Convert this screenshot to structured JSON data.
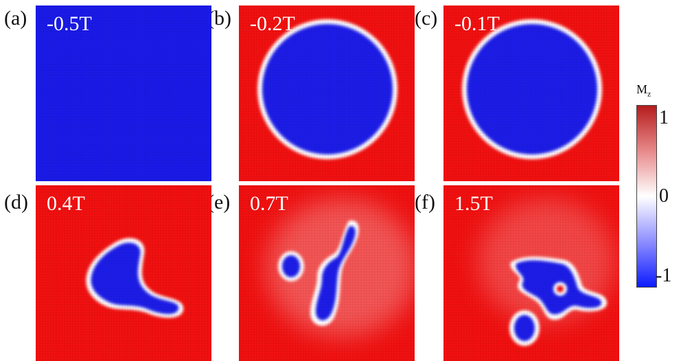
{
  "colors": {
    "up": "#f01010",
    "down": "#1a1ae6",
    "wall": "#ffffff"
  },
  "colorbar": {
    "label_main": "M",
    "label_sub": "z",
    "ticks": [
      "1",
      "0",
      "-1"
    ]
  },
  "panels": [
    {
      "tag": "(a)",
      "field": "-0.5T"
    },
    {
      "tag": "(b)",
      "field": "-0.2T"
    },
    {
      "tag": "(c)",
      "field": "-0.1T"
    },
    {
      "tag": "(d)",
      "field": "0.4T"
    },
    {
      "tag": "(e)",
      "field": "0.7T"
    },
    {
      "tag": "(f)",
      "field": "1.5T"
    }
  ]
}
